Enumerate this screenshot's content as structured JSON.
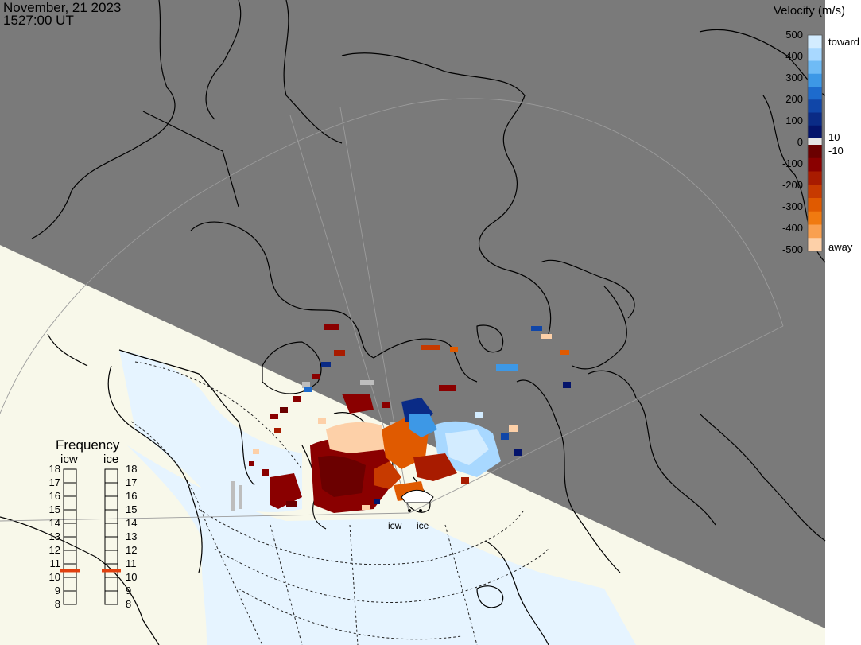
{
  "header": {
    "date": "November, 21 2023",
    "time": "1527:00 UT"
  },
  "velocity_legend": {
    "title": "Velocity (m/s)",
    "ticks": [
      "500",
      "400",
      "300",
      "200",
      "100",
      "0",
      "-100",
      "-200",
      "-300",
      "-400",
      "-500"
    ],
    "toward_label": "toward",
    "away_label": "away",
    "pos_threshold": "10",
    "neg_threshold": "-10",
    "toward_colors": [
      "#d3ecff",
      "#a8d8ff",
      "#6fbbf5",
      "#3d98e6",
      "#1d6bcd",
      "#1046a8",
      "#0a2b86",
      "#04146b"
    ],
    "away_colors": [
      "#6b0000",
      "#8a0000",
      "#a81b00",
      "#c73a00",
      "#e05a00",
      "#f07a10",
      "#f9a050",
      "#fdd0a8"
    ]
  },
  "frequency_legend": {
    "title": "Frequency",
    "columns": [
      {
        "label": "icw",
        "selected": 10.5
      },
      {
        "label": "ice",
        "selected": 10.5
      }
    ],
    "ticks": [
      "18",
      "17",
      "16",
      "15",
      "14",
      "13",
      "12",
      "11",
      "10",
      "9",
      "8"
    ]
  },
  "radar_sites": [
    {
      "label": "icw"
    },
    {
      "label": "ice"
    }
  ],
  "colors": {
    "night": "#7a7a7a",
    "day_land": "#f8f8ea",
    "day_ocean": "#e6f4ff",
    "coast": "#000000",
    "grid": "#a0a0a0",
    "marker": "#e0400f",
    "ground_scatter": "#bdbdbd"
  }
}
